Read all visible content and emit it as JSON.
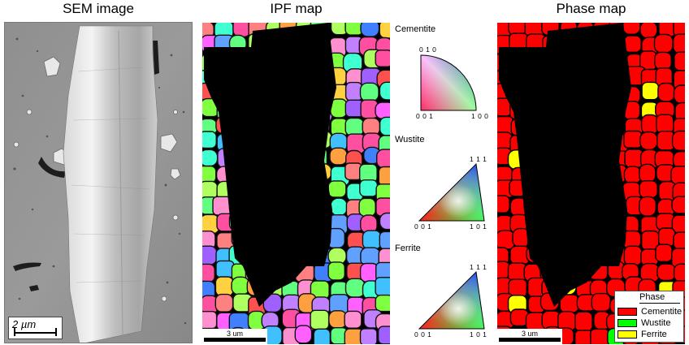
{
  "titles": {
    "sem": "SEM image",
    "ipf": "IPF map",
    "phase": "Phase map"
  },
  "sem_scale": "2 µm",
  "ipf_scale": "3 um",
  "phase_scale": "3 um",
  "legend": {
    "cementite": {
      "title": "Cementite",
      "top": "0 1 0",
      "bottom_left": "0 0 1",
      "bottom_right": "1 0 0"
    },
    "wustite": {
      "title": "Wustite",
      "top": "1 1 1",
      "bottom_left": "0 0 1",
      "bottom_right": "1 0 1"
    },
    "ferrite": {
      "title": "Ferrite",
      "top": "1 1 1",
      "bottom_left": "0 0 1",
      "bottom_right": "1 0 1"
    }
  },
  "phase_legend": {
    "header": "Phase",
    "items": [
      {
        "label": "Cementite",
        "color": "#ff0000"
      },
      {
        "label": "Wustite",
        "color": "#00ff00"
      },
      {
        "label": "Ferrite",
        "color": "#ffff00"
      }
    ]
  },
  "colors": {
    "background_black": "#000000",
    "cementite": "#ff0000",
    "wustite": "#00ff00",
    "ferrite": "#ffff00"
  }
}
